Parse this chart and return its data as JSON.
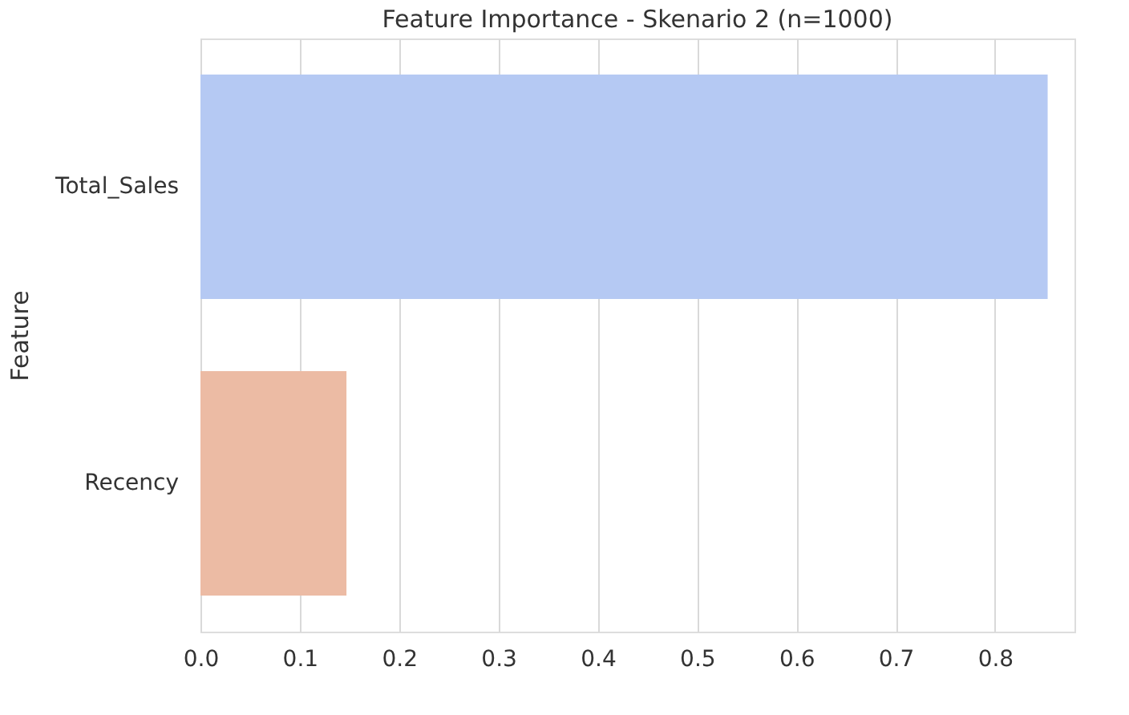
{
  "chart_data": {
    "type": "bar",
    "orientation": "horizontal",
    "title": "Feature Importance - Skenario 2 (n=1000)",
    "ylabel": "Feature",
    "categories": [
      "Total_Sales",
      "Recency"
    ],
    "values": [
      0.853,
      0.147
    ],
    "colors": [
      "#b5c9f3",
      "#ecbba4"
    ],
    "xlim": [
      0,
      0.88
    ],
    "xticks": [
      {
        "value": 0,
        "label": "0.0"
      },
      0.1,
      0.2,
      0.3,
      0.4,
      0.5,
      0.6,
      0.7,
      0.8
    ],
    "grid": "x",
    "legend": false
  }
}
